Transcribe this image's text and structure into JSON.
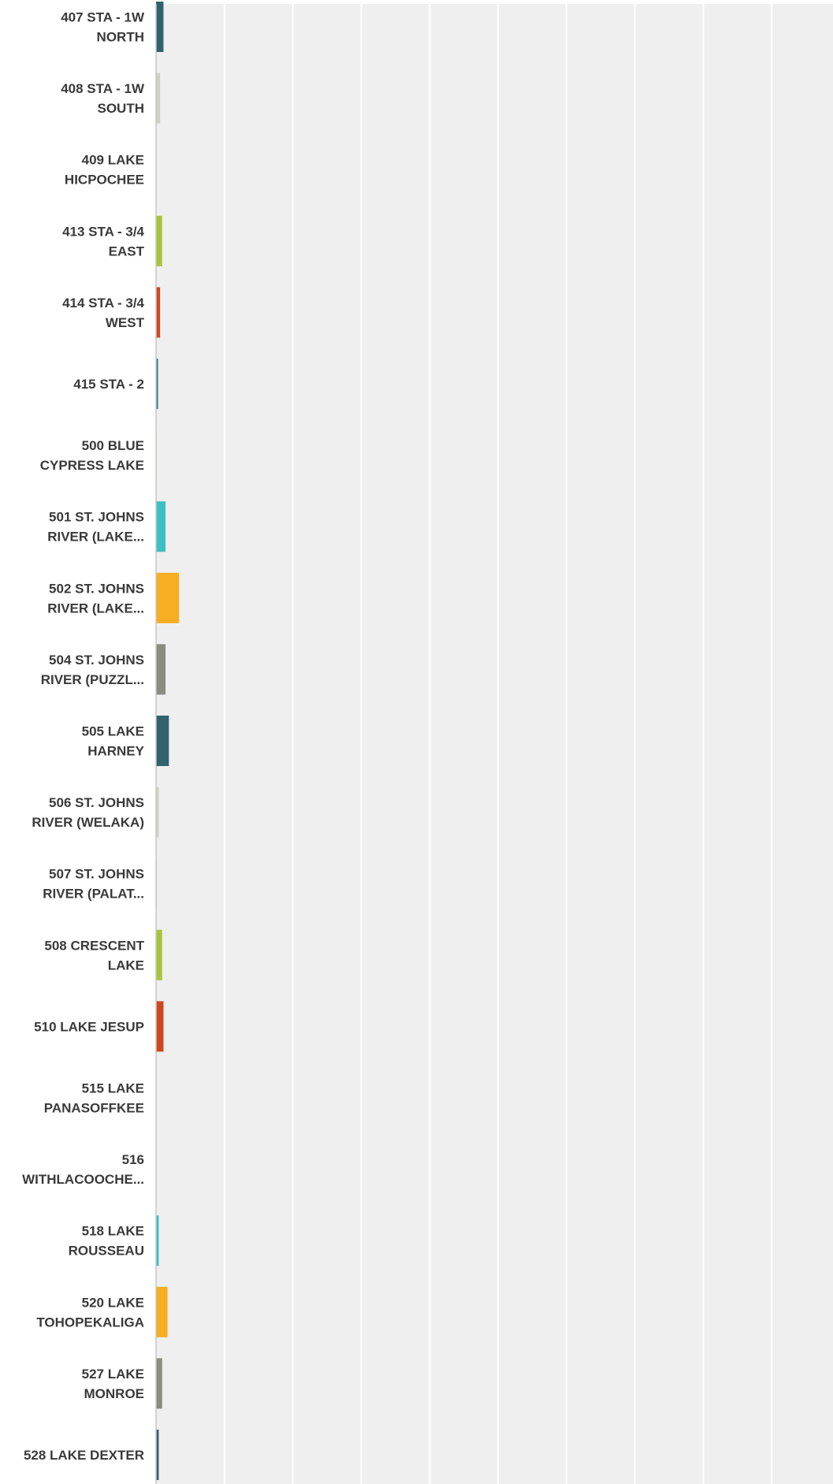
{
  "chart_data": {
    "type": "bar",
    "orientation": "horizontal",
    "grid": true,
    "xlim": [
      0,
      100
    ],
    "categories": [
      [
        "407 STA - 1W",
        "NORTH"
      ],
      [
        "408 STA - 1W",
        "SOUTH"
      ],
      [
        "409 LAKE",
        "HICPOCHEE"
      ],
      [
        "413 STA - 3/4",
        "EAST"
      ],
      [
        "414 STA - 3/4",
        "WEST"
      ],
      [
        "415 STA - 2"
      ],
      [
        "500 BLUE",
        "CYPRESS LAKE"
      ],
      [
        "501 ST. JOHNS",
        "RIVER (LAKE..."
      ],
      [
        "502 ST. JOHNS",
        "RIVER (LAKE..."
      ],
      [
        "504 ST. JOHNS",
        "RIVER (PUZZL..."
      ],
      [
        "505 LAKE",
        "HARNEY"
      ],
      [
        "506 ST. JOHNS",
        "RIVER (WELAKA)"
      ],
      [
        "507 ST. JOHNS",
        "RIVER (PALAT..."
      ],
      [
        "508 CRESCENT",
        "LAKE"
      ],
      [
        "510 LAKE JESUP"
      ],
      [
        "515 LAKE",
        "PANASOFFKEE"
      ],
      [
        "516",
        "WITHLACOOCHE..."
      ],
      [
        "518 LAKE",
        "ROUSSEAU"
      ],
      [
        "520 LAKE",
        "TOHOPEKALIGA"
      ],
      [
        "527 LAKE",
        "MONROE"
      ],
      [
        "528 LAKE DEXTER"
      ]
    ],
    "values": [
      1.1,
      0.6,
      0,
      0.9,
      0.6,
      0.3,
      0.1,
      1.4,
      3.4,
      1.4,
      1.9,
      0.4,
      0.1,
      0.9,
      1.1,
      0,
      0,
      0.4,
      1.7,
      0.9,
      0.4
    ],
    "colors": [
      "#33626f",
      "#cfd1c0",
      "#cfd1c0",
      "#a8c43a",
      "#d0461f",
      "#2f7f8d",
      "#d8ddb0",
      "#3cc0c4",
      "#f8ae22",
      "#8a8c80",
      "#33626f",
      "#cfd1c0",
      "#cfd1c0",
      "#a8c43a",
      "#d0461f",
      "#cfd1c0",
      "#cfd1c0",
      "#3cc0c4",
      "#f8ae22",
      "#8a8c80",
      "#33626f"
    ]
  }
}
